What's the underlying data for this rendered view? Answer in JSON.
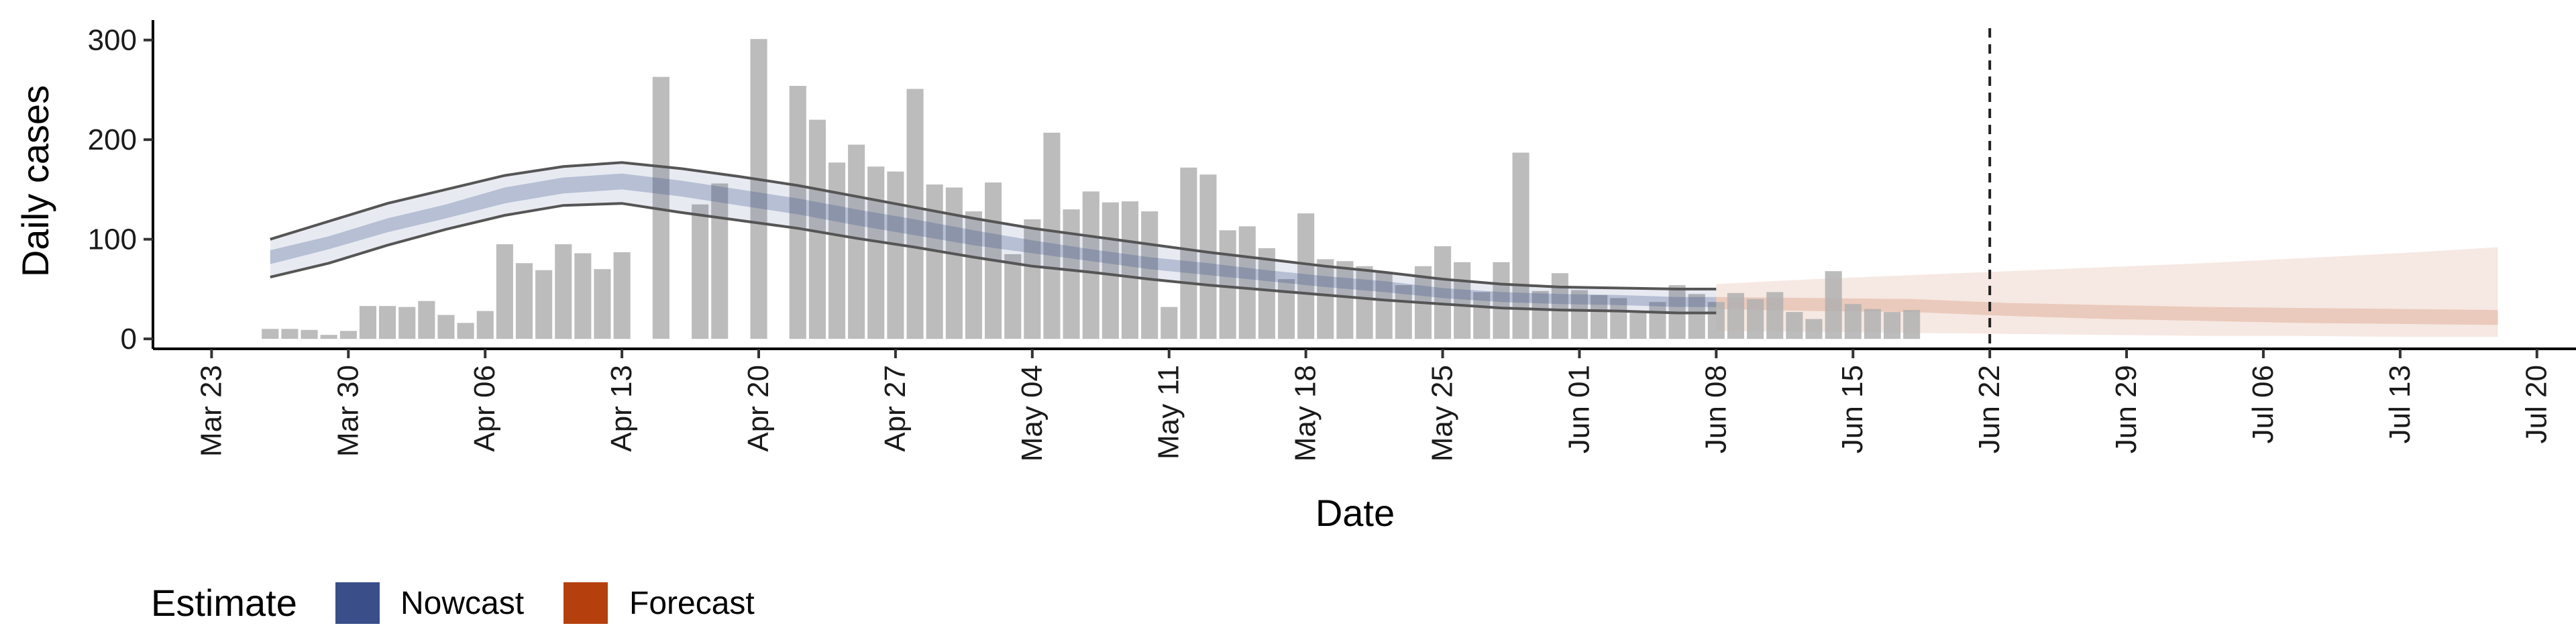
{
  "chart_data": {
    "type": "bar",
    "xlabel": "Date",
    "ylabel": "Daily cases",
    "x_axis": {
      "type": "date",
      "range": [
        "2020-03-20",
        "2020-07-22"
      ]
    },
    "ylim": [
      -10,
      320
    ],
    "yticks": [
      0,
      100,
      200,
      300
    ],
    "xticks": [
      {
        "date": "2020-03-23",
        "label": "Mar 23"
      },
      {
        "date": "2020-03-30",
        "label": "Mar 30"
      },
      {
        "date": "2020-04-06",
        "label": "Apr 06"
      },
      {
        "date": "2020-04-13",
        "label": "Apr 13"
      },
      {
        "date": "2020-04-20",
        "label": "Apr 20"
      },
      {
        "date": "2020-04-27",
        "label": "Apr 27"
      },
      {
        "date": "2020-05-04",
        "label": "May 04"
      },
      {
        "date": "2020-05-11",
        "label": "May 11"
      },
      {
        "date": "2020-05-18",
        "label": "May 18"
      },
      {
        "date": "2020-05-25",
        "label": "May 25"
      },
      {
        "date": "2020-06-01",
        "label": "Jun 01"
      },
      {
        "date": "2020-06-08",
        "label": "Jun 08"
      },
      {
        "date": "2020-06-15",
        "label": "Jun 15"
      },
      {
        "date": "2020-06-22",
        "label": "Jun 22"
      },
      {
        "date": "2020-06-29",
        "label": "Jun 29"
      },
      {
        "date": "2020-07-06",
        "label": "Jul 06"
      },
      {
        "date": "2020-07-13",
        "label": "Jul 13"
      },
      {
        "date": "2020-07-20",
        "label": "Jul 20"
      }
    ],
    "grid": false,
    "bars": {
      "start_date": "2020-03-26",
      "color": "#b0b0b0",
      "values": [
        10,
        10,
        9,
        4,
        8,
        33,
        33,
        32,
        38,
        24,
        16,
        28,
        95,
        76,
        69,
        95,
        86,
        70,
        87,
        0,
        263,
        0,
        135,
        156,
        0,
        301,
        0,
        254,
        220,
        177,
        195,
        173,
        168,
        251,
        155,
        152,
        128,
        157,
        85,
        120,
        207,
        130,
        148,
        137,
        138,
        128,
        32,
        172,
        165,
        109,
        113,
        91,
        60,
        126,
        80,
        78,
        73,
        67,
        54,
        73,
        93,
        77,
        47,
        77,
        187,
        48,
        66,
        49,
        44,
        41,
        26,
        37,
        54,
        45,
        37,
        46,
        40,
        47,
        27,
        20,
        68,
        35,
        30,
        27,
        29
      ]
    },
    "nowcast": {
      "name": "Nowcast",
      "color": "#3a4f8a",
      "dates": [
        "2020-03-26",
        "2020-03-29",
        "2020-04-01",
        "2020-04-04",
        "2020-04-07",
        "2020-04-10",
        "2020-04-13",
        "2020-04-16",
        "2020-04-19",
        "2020-04-22",
        "2020-04-25",
        "2020-04-28",
        "2020-05-01",
        "2020-05-04",
        "2020-05-07",
        "2020-05-10",
        "2020-05-13",
        "2020-05-16",
        "2020-05-19",
        "2020-05-22",
        "2020-05-25",
        "2020-05-28",
        "2020-05-31",
        "2020-06-03",
        "2020-06-06",
        "2020-06-08"
      ],
      "median": [
        82,
        96,
        114,
        128,
        144,
        154,
        158,
        151,
        142,
        133,
        122,
        112,
        101,
        92,
        84,
        76,
        70,
        63,
        57,
        52,
        46,
        42,
        40,
        39,
        37,
        37
      ],
      "inner_lower": [
        75,
        90,
        107,
        121,
        136,
        146,
        150,
        143,
        134,
        125,
        114,
        104,
        94,
        86,
        78,
        70,
        64,
        58,
        52,
        47,
        41,
        37,
        35,
        34,
        32,
        32
      ],
      "inner_upper": [
        89,
        103,
        121,
        135,
        152,
        162,
        166,
        159,
        150,
        141,
        130,
        120,
        109,
        99,
        90,
        82,
        76,
        69,
        63,
        58,
        51,
        47,
        45,
        44,
        42,
        42
      ],
      "lower": [
        62,
        76,
        94,
        110,
        124,
        134,
        136,
        127,
        119,
        111,
        101,
        92,
        82,
        73,
        67,
        60,
        54,
        49,
        44,
        39,
        35,
        31,
        29,
        28,
        26,
        26
      ],
      "upper": [
        100,
        118,
        136,
        150,
        164,
        173,
        177,
        171,
        163,
        154,
        143,
        132,
        121,
        111,
        103,
        95,
        87,
        80,
        73,
        67,
        60,
        55,
        52,
        51,
        50,
        50
      ]
    },
    "forecast": {
      "name": "Forecast",
      "color": "#b5400e",
      "dates": [
        "2020-06-08",
        "2020-06-13",
        "2020-06-18",
        "2020-06-23",
        "2020-06-28",
        "2020-07-03",
        "2020-07-08",
        "2020-07-13",
        "2020-07-18"
      ],
      "inner_lower": [
        30,
        28,
        27,
        23,
        20,
        18,
        16,
        15,
        14
      ],
      "inner_upper": [
        42,
        41,
        40,
        36,
        34,
        32,
        31,
        30,
        29
      ],
      "lower": [
        8,
        7,
        6,
        5,
        4,
        3,
        3,
        2,
        2
      ],
      "upper": [
        55,
        60,
        64,
        68,
        72,
        76,
        81,
        86,
        92
      ]
    },
    "vline_date": "2020-06-22",
    "legend": {
      "title": "Estimate",
      "position": "bottom-left",
      "entries": [
        {
          "label": "Nowcast",
          "color": "#3a4f8a"
        },
        {
          "label": "Forecast",
          "color": "#b5400e"
        }
      ]
    }
  }
}
